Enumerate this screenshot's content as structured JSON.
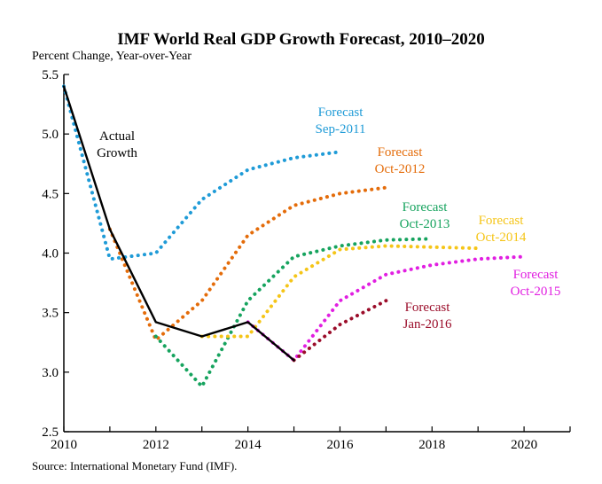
{
  "chart_data": {
    "type": "line",
    "title": "IMF World Real GDP Growth Forecast, 2010–2020",
    "ylabel": "Percent Change, Year-over-Year",
    "xlabel": "",
    "source": "Source: International Monetary Fund (IMF).",
    "xlim": [
      2010,
      2021
    ],
    "ylim": [
      2.5,
      5.5
    ],
    "x_ticks": [
      2010,
      2012,
      2014,
      2016,
      2018,
      2020
    ],
    "y_ticks": [
      2.5,
      3.0,
      3.5,
      4.0,
      4.5,
      5.0,
      5.5
    ],
    "x_tick_labels": [
      "2010",
      "2012",
      "2014",
      "2016",
      "2018",
      "2020"
    ],
    "y_tick_labels": [
      "2.5",
      "3.0",
      "3.5",
      "4.0",
      "4.5",
      "5.0",
      "5.5"
    ],
    "grid": false,
    "legend": "none",
    "series": [
      {
        "name": "Actual Growth",
        "label_lines": [
          "Actual",
          "Growth"
        ],
        "style": "solid",
        "color": "#000000",
        "x": [
          2010,
          2011,
          2012,
          2013,
          2014,
          2015
        ],
        "y": [
          5.4,
          4.2,
          3.42,
          3.3,
          3.42,
          3.1
        ]
      },
      {
        "name": "Forecast Sep-2011",
        "label_lines": [
          "Forecast",
          "Sep-2011"
        ],
        "style": "dotted",
        "color": "#1f9bd7",
        "x": [
          2010,
          2011,
          2012,
          2013,
          2014,
          2015,
          2016
        ],
        "y": [
          5.4,
          3.95,
          4.0,
          4.45,
          4.7,
          4.8,
          4.85
        ]
      },
      {
        "name": "Forecast Oct-2012",
        "label_lines": [
          "Forecast",
          "Oct-2012"
        ],
        "style": "dotted",
        "color": "#e46c0a",
        "x": [
          2011,
          2012,
          2013,
          2014,
          2015,
          2016,
          2017
        ],
        "y": [
          4.2,
          3.27,
          3.6,
          4.15,
          4.4,
          4.5,
          4.55
        ]
      },
      {
        "name": "Forecast Oct-2013",
        "label_lines": [
          "Forecast",
          "Oct-2013"
        ],
        "style": "dotted",
        "color": "#16a35e",
        "x": [
          2012,
          2013,
          2014,
          2015,
          2016,
          2017,
          2018
        ],
        "y": [
          3.3,
          2.88,
          3.6,
          3.97,
          4.06,
          4.11,
          4.12
        ]
      },
      {
        "name": "Forecast Oct-2014",
        "label_lines": [
          "Forecast",
          "Oct-2014"
        ],
        "style": "dotted",
        "color": "#f5c518",
        "x": [
          2013,
          2014,
          2015,
          2016,
          2017,
          2018,
          2019
        ],
        "y": [
          3.3,
          3.3,
          3.8,
          4.03,
          4.06,
          4.05,
          4.04
        ]
      },
      {
        "name": "Forecast Oct-2015",
        "label_lines": [
          "Forecast",
          "Oct-2015"
        ],
        "style": "dotted",
        "color": "#e11fe1",
        "x": [
          2014,
          2015,
          2016,
          2017,
          2018,
          2019,
          2020
        ],
        "y": [
          3.42,
          3.1,
          3.6,
          3.82,
          3.9,
          3.95,
          3.97
        ]
      },
      {
        "name": "Forecast Jan-2016",
        "label_lines": [
          "Forecast",
          "Jan-2016"
        ],
        "style": "dotted",
        "color": "#9b0d2a",
        "x": [
          2015,
          2016,
          2017
        ],
        "y": [
          3.1,
          3.4,
          3.6
        ]
      }
    ]
  }
}
